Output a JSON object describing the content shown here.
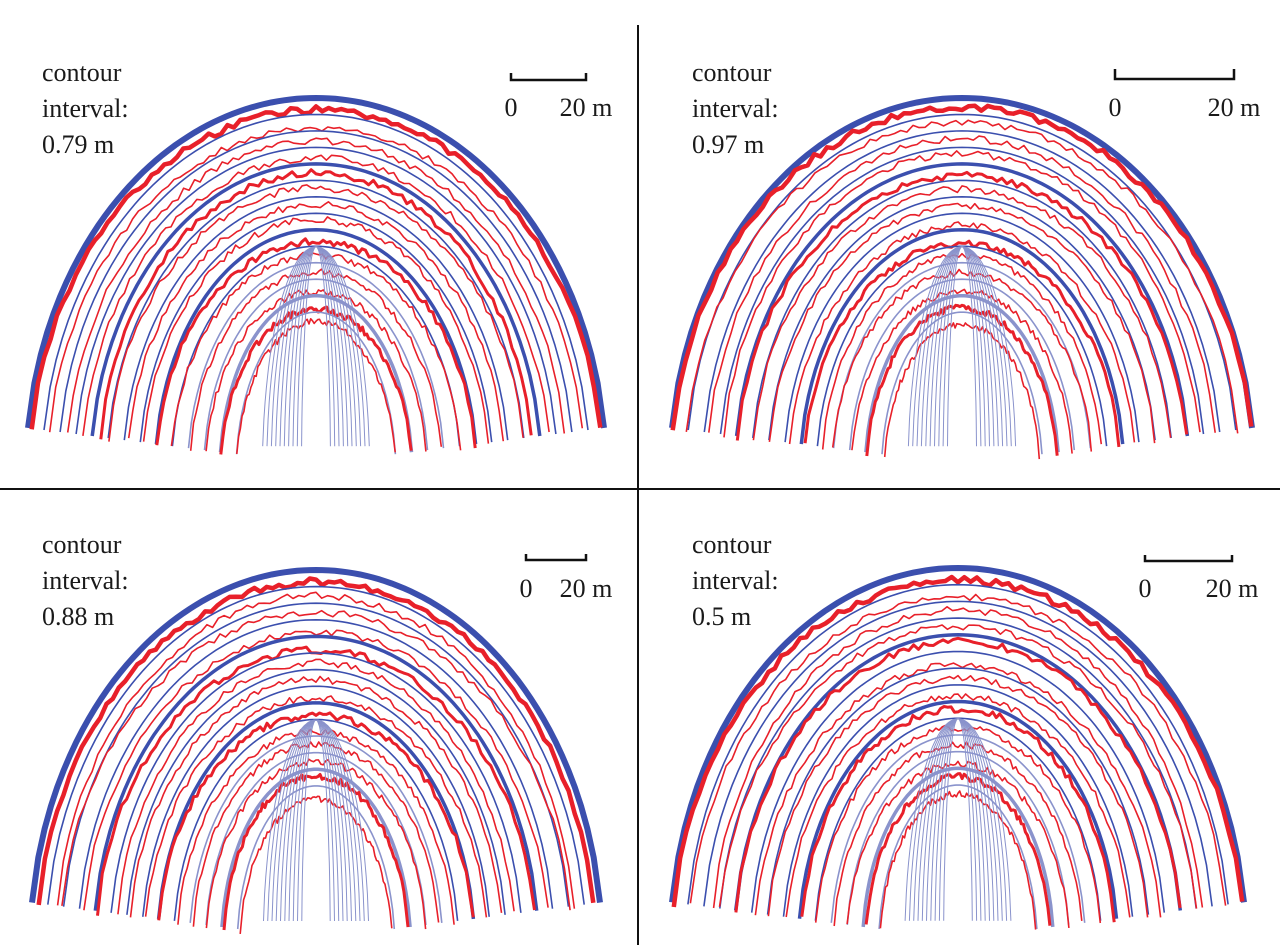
{
  "colors": {
    "model_contour": "#3b4fae",
    "model_contour_light": "#8a93cc",
    "measured_contour": "#e8202a",
    "divider": "#111111",
    "text": "#1a1a1a"
  },
  "panels": [
    {
      "id": "top-left",
      "label_lines": [
        "contour",
        "interval:",
        "0.79 m"
      ],
      "scale_bar": {
        "start_label": "0",
        "end_label": "20 m"
      }
    },
    {
      "id": "top-right",
      "label_lines": [
        "contour",
        "interval:",
        "0.97 m"
      ],
      "scale_bar": {
        "start_label": "0",
        "end_label": "20 m"
      }
    },
    {
      "id": "bottom-left",
      "label_lines": [
        "contour",
        "interval:",
        "0.88 m"
      ],
      "scale_bar": {
        "start_label": "0",
        "end_label": "20 m"
      }
    },
    {
      "id": "bottom-right",
      "label_lines": [
        "contour",
        "interval:",
        "0.5 m"
      ],
      "scale_bar": {
        "start_label": "0",
        "end_label": "20 m"
      }
    }
  ]
}
